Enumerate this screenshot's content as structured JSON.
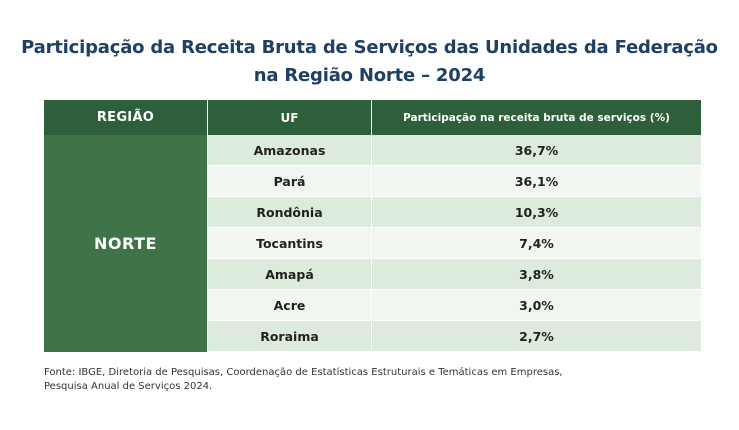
{
  "title": {
    "line1": "Participação da Receita Bruta de Serviços das Unidades da Federação",
    "line2": "na Região Norte – 2024"
  },
  "table": {
    "headers": {
      "regiao": "REGIÃO",
      "uf": "UF",
      "participacao": "Participação na receita bruta de serviços (%)"
    },
    "regiao": "NORTE",
    "rows": [
      {
        "uf": "Amazonas",
        "value": "36,7%"
      },
      {
        "uf": "Pará",
        "value": "36,1%"
      },
      {
        "uf": "Rondônia",
        "value": "10,3%"
      },
      {
        "uf": "Tocantins",
        "value": "7,4%"
      },
      {
        "uf": "Amapá",
        "value": "3,8%"
      },
      {
        "uf": "Acre",
        "value": "3,0%"
      },
      {
        "uf": "Roraima",
        "value": "2,7%"
      }
    ]
  },
  "source": {
    "line1": "Fonte: IBGE, Diretoria de Pesquisas, Coordenação de Estatísticas Estruturais e Temáticas em Empresas,",
    "line2": "Pesquisa Anual de Serviços 2024."
  },
  "colors": {
    "title": "#1f3f63",
    "header_bg": "#2d5f3a",
    "region_bg": "#3e7448",
    "row_odd": "#dcebdc",
    "row_even": "#f1f6f0"
  }
}
